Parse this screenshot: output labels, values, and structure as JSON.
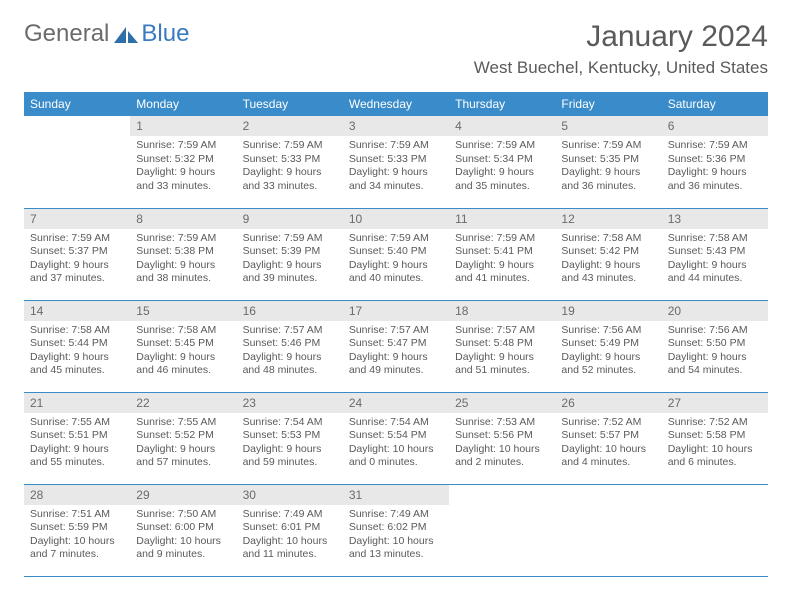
{
  "brand": {
    "part1": "General",
    "part2": "Blue"
  },
  "title": "January 2024",
  "location": "West Buechel, Kentucky, United States",
  "colors": {
    "header_bg": "#3a8bc9",
    "header_text": "#ffffff",
    "daynum_bg": "#e8e8e8",
    "border": "#3a8bc9",
    "text": "#5a5a5a",
    "brand_gray": "#6b6b6b",
    "brand_blue": "#3a7bbf"
  },
  "weekdays": [
    "Sunday",
    "Monday",
    "Tuesday",
    "Wednesday",
    "Thursday",
    "Friday",
    "Saturday"
  ],
  "weeks": [
    [
      null,
      {
        "n": "1",
        "sr": "Sunrise: 7:59 AM",
        "ss": "Sunset: 5:32 PM",
        "dl": "Daylight: 9 hours and 33 minutes."
      },
      {
        "n": "2",
        "sr": "Sunrise: 7:59 AM",
        "ss": "Sunset: 5:33 PM",
        "dl": "Daylight: 9 hours and 33 minutes."
      },
      {
        "n": "3",
        "sr": "Sunrise: 7:59 AM",
        "ss": "Sunset: 5:33 PM",
        "dl": "Daylight: 9 hours and 34 minutes."
      },
      {
        "n": "4",
        "sr": "Sunrise: 7:59 AM",
        "ss": "Sunset: 5:34 PM",
        "dl": "Daylight: 9 hours and 35 minutes."
      },
      {
        "n": "5",
        "sr": "Sunrise: 7:59 AM",
        "ss": "Sunset: 5:35 PM",
        "dl": "Daylight: 9 hours and 36 minutes."
      },
      {
        "n": "6",
        "sr": "Sunrise: 7:59 AM",
        "ss": "Sunset: 5:36 PM",
        "dl": "Daylight: 9 hours and 36 minutes."
      }
    ],
    [
      {
        "n": "7",
        "sr": "Sunrise: 7:59 AM",
        "ss": "Sunset: 5:37 PM",
        "dl": "Daylight: 9 hours and 37 minutes."
      },
      {
        "n": "8",
        "sr": "Sunrise: 7:59 AM",
        "ss": "Sunset: 5:38 PM",
        "dl": "Daylight: 9 hours and 38 minutes."
      },
      {
        "n": "9",
        "sr": "Sunrise: 7:59 AM",
        "ss": "Sunset: 5:39 PM",
        "dl": "Daylight: 9 hours and 39 minutes."
      },
      {
        "n": "10",
        "sr": "Sunrise: 7:59 AM",
        "ss": "Sunset: 5:40 PM",
        "dl": "Daylight: 9 hours and 40 minutes."
      },
      {
        "n": "11",
        "sr": "Sunrise: 7:59 AM",
        "ss": "Sunset: 5:41 PM",
        "dl": "Daylight: 9 hours and 41 minutes."
      },
      {
        "n": "12",
        "sr": "Sunrise: 7:58 AM",
        "ss": "Sunset: 5:42 PM",
        "dl": "Daylight: 9 hours and 43 minutes."
      },
      {
        "n": "13",
        "sr": "Sunrise: 7:58 AM",
        "ss": "Sunset: 5:43 PM",
        "dl": "Daylight: 9 hours and 44 minutes."
      }
    ],
    [
      {
        "n": "14",
        "sr": "Sunrise: 7:58 AM",
        "ss": "Sunset: 5:44 PM",
        "dl": "Daylight: 9 hours and 45 minutes."
      },
      {
        "n": "15",
        "sr": "Sunrise: 7:58 AM",
        "ss": "Sunset: 5:45 PM",
        "dl": "Daylight: 9 hours and 46 minutes."
      },
      {
        "n": "16",
        "sr": "Sunrise: 7:57 AM",
        "ss": "Sunset: 5:46 PM",
        "dl": "Daylight: 9 hours and 48 minutes."
      },
      {
        "n": "17",
        "sr": "Sunrise: 7:57 AM",
        "ss": "Sunset: 5:47 PM",
        "dl": "Daylight: 9 hours and 49 minutes."
      },
      {
        "n": "18",
        "sr": "Sunrise: 7:57 AM",
        "ss": "Sunset: 5:48 PM",
        "dl": "Daylight: 9 hours and 51 minutes."
      },
      {
        "n": "19",
        "sr": "Sunrise: 7:56 AM",
        "ss": "Sunset: 5:49 PM",
        "dl": "Daylight: 9 hours and 52 minutes."
      },
      {
        "n": "20",
        "sr": "Sunrise: 7:56 AM",
        "ss": "Sunset: 5:50 PM",
        "dl": "Daylight: 9 hours and 54 minutes."
      }
    ],
    [
      {
        "n": "21",
        "sr": "Sunrise: 7:55 AM",
        "ss": "Sunset: 5:51 PM",
        "dl": "Daylight: 9 hours and 55 minutes."
      },
      {
        "n": "22",
        "sr": "Sunrise: 7:55 AM",
        "ss": "Sunset: 5:52 PM",
        "dl": "Daylight: 9 hours and 57 minutes."
      },
      {
        "n": "23",
        "sr": "Sunrise: 7:54 AM",
        "ss": "Sunset: 5:53 PM",
        "dl": "Daylight: 9 hours and 59 minutes."
      },
      {
        "n": "24",
        "sr": "Sunrise: 7:54 AM",
        "ss": "Sunset: 5:54 PM",
        "dl": "Daylight: 10 hours and 0 minutes."
      },
      {
        "n": "25",
        "sr": "Sunrise: 7:53 AM",
        "ss": "Sunset: 5:56 PM",
        "dl": "Daylight: 10 hours and 2 minutes."
      },
      {
        "n": "26",
        "sr": "Sunrise: 7:52 AM",
        "ss": "Sunset: 5:57 PM",
        "dl": "Daylight: 10 hours and 4 minutes."
      },
      {
        "n": "27",
        "sr": "Sunrise: 7:52 AM",
        "ss": "Sunset: 5:58 PM",
        "dl": "Daylight: 10 hours and 6 minutes."
      }
    ],
    [
      {
        "n": "28",
        "sr": "Sunrise: 7:51 AM",
        "ss": "Sunset: 5:59 PM",
        "dl": "Daylight: 10 hours and 7 minutes."
      },
      {
        "n": "29",
        "sr": "Sunrise: 7:50 AM",
        "ss": "Sunset: 6:00 PM",
        "dl": "Daylight: 10 hours and 9 minutes."
      },
      {
        "n": "30",
        "sr": "Sunrise: 7:49 AM",
        "ss": "Sunset: 6:01 PM",
        "dl": "Daylight: 10 hours and 11 minutes."
      },
      {
        "n": "31",
        "sr": "Sunrise: 7:49 AM",
        "ss": "Sunset: 6:02 PM",
        "dl": "Daylight: 10 hours and 13 minutes."
      },
      null,
      null,
      null
    ]
  ]
}
